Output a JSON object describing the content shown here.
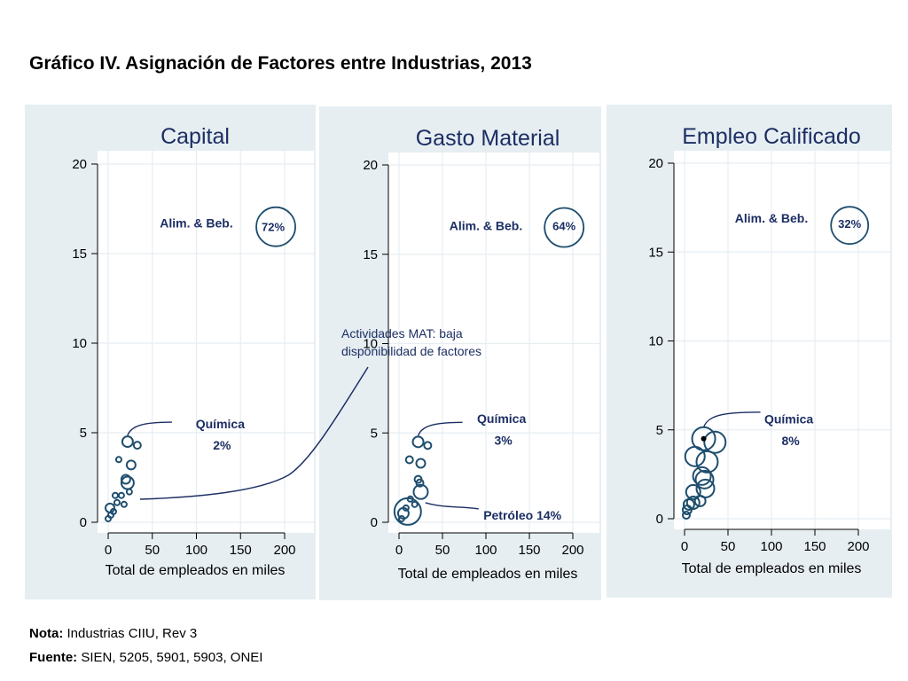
{
  "title": "Gráfico IV. Asignación de Factores entre Industrias, 2013",
  "colors": {
    "panel_bg": "#e6eef2",
    "bubble": "#1f4e6e",
    "annotation": "#1c2e63"
  },
  "chart_data": [
    {
      "type": "scatter",
      "title": "Capital",
      "xlabel": "Total de empleados en miles",
      "ylabel": "",
      "xlim": [
        0,
        200
      ],
      "ylim": [
        0,
        20
      ],
      "xticks": [
        "0",
        "50",
        "100",
        "150",
        "200"
      ],
      "yticks": [
        "0",
        "5",
        "10",
        "15",
        "20"
      ],
      "grid": true,
      "points": [
        {
          "x": 190,
          "y": 16.5,
          "r": 22
        },
        {
          "x": 22,
          "y": 4.5,
          "r": 6
        },
        {
          "x": 33,
          "y": 4.3,
          "r": 4
        },
        {
          "x": 12,
          "y": 3.5,
          "r": 3
        },
        {
          "x": 26,
          "y": 3.2,
          "r": 5
        },
        {
          "x": 20,
          "y": 2.4,
          "r": 5
        },
        {
          "x": 22,
          "y": 2.2,
          "r": 7
        },
        {
          "x": 24,
          "y": 1.7,
          "r": 3
        },
        {
          "x": 8,
          "y": 1.5,
          "r": 3
        },
        {
          "x": 15,
          "y": 1.5,
          "r": 3
        },
        {
          "x": 10,
          "y": 1.1,
          "r": 3
        },
        {
          "x": 18,
          "y": 1.0,
          "r": 3
        },
        {
          "x": 2,
          "y": 0.8,
          "r": 5
        },
        {
          "x": 6,
          "y": 0.6,
          "r": 3
        },
        {
          "x": 3,
          "y": 0.4,
          "r": 3
        },
        {
          "x": 0,
          "y": 0.2,
          "r": 3
        }
      ],
      "annotations": [
        {
          "text": "Alim. & Beb.",
          "x": 100,
          "y": 16.7
        },
        {
          "text": "72%",
          "x": 187,
          "y": 16.5
        },
        {
          "text": "Química",
          "x": 127,
          "y": 5.5
        },
        {
          "text": "2%",
          "x": 129,
          "y": 4.3
        }
      ]
    },
    {
      "type": "scatter",
      "title": "Gasto Material",
      "xlabel": "Total de empleados en miles",
      "ylabel": "",
      "xlim": [
        0,
        200
      ],
      "ylim": [
        0,
        20
      ],
      "xticks": [
        "0",
        "50",
        "100",
        "150",
        "200"
      ],
      "yticks": [
        "0",
        "5",
        "10",
        "15",
        "20"
      ],
      "grid": true,
      "points": [
        {
          "x": 190,
          "y": 16.5,
          "r": 22
        },
        {
          "x": 22,
          "y": 4.5,
          "r": 6
        },
        {
          "x": 33,
          "y": 4.3,
          "r": 4
        },
        {
          "x": 12,
          "y": 3.5,
          "r": 4
        },
        {
          "x": 25,
          "y": 3.3,
          "r": 5
        },
        {
          "x": 22,
          "y": 2.4,
          "r": 4
        },
        {
          "x": 24,
          "y": 2.2,
          "r": 4
        },
        {
          "x": 25,
          "y": 1.7,
          "r": 8
        },
        {
          "x": 13,
          "y": 1.3,
          "r": 3
        },
        {
          "x": 18,
          "y": 1.0,
          "r": 3
        },
        {
          "x": 8,
          "y": 0.8,
          "r": 3
        },
        {
          "x": 10,
          "y": 0.6,
          "r": 15
        },
        {
          "x": 5,
          "y": 0.5,
          "r": 6
        },
        {
          "x": 3,
          "y": 0.2,
          "r": 3
        }
      ],
      "annotations": [
        {
          "text": "Alim. & Beb.",
          "x": 100,
          "y": 16.6
        },
        {
          "text": "64%",
          "x": 190,
          "y": 16.6
        },
        {
          "text": "Química",
          "x": 118,
          "y": 5.8
        },
        {
          "text": "3%",
          "x": 120,
          "y": 4.6
        },
        {
          "text": "Petróleo 14%",
          "x": 142,
          "y": 0.4
        }
      ]
    },
    {
      "type": "scatter",
      "title": "Empleo Calificado",
      "xlabel": "Total de empleados en miles",
      "ylabel": "",
      "xlim": [
        0,
        200
      ],
      "ylim": [
        0,
        20
      ],
      "xticks": [
        "0",
        "50",
        "100",
        "150",
        "200"
      ],
      "yticks": [
        "0",
        "5",
        "10",
        "15",
        "20"
      ],
      "grid": true,
      "points": [
        {
          "x": 190,
          "y": 16.5,
          "r": 21
        },
        {
          "x": 22,
          "y": 4.5,
          "r": 13
        },
        {
          "x": 35,
          "y": 4.3,
          "r": 12
        },
        {
          "x": 12,
          "y": 3.5,
          "r": 11
        },
        {
          "x": 26,
          "y": 3.2,
          "r": 12
        },
        {
          "x": 20,
          "y": 2.4,
          "r": 10
        },
        {
          "x": 23,
          "y": 2.2,
          "r": 10
        },
        {
          "x": 24,
          "y": 1.7,
          "r": 10
        },
        {
          "x": 10,
          "y": 1.5,
          "r": 8
        },
        {
          "x": 18,
          "y": 1.0,
          "r": 6
        },
        {
          "x": 10,
          "y": 0.9,
          "r": 7
        },
        {
          "x": 5,
          "y": 0.8,
          "r": 6
        },
        {
          "x": 3,
          "y": 0.5,
          "r": 5
        },
        {
          "x": 2,
          "y": 0.2,
          "r": 4
        }
      ],
      "annotations": [
        {
          "text": "Alim. & Beb.",
          "x": 100,
          "y": 16.9
        },
        {
          "text": "32%",
          "x": 190,
          "y": 16.6
        },
        {
          "text": "Química",
          "x": 120,
          "y": 5.6
        },
        {
          "text": "8%",
          "x": 122,
          "y": 4.4
        }
      ]
    }
  ],
  "callout": {
    "line1": "Actividades MAT: baja",
    "line2": "disponibilidad de factores"
  },
  "note": {
    "label": "Nota:",
    "text": " Industrias CIIU, Rev 3"
  },
  "source": {
    "label": "Fuente:",
    "text": " SIEN, 5205, 5901, 5903, ONEI"
  }
}
